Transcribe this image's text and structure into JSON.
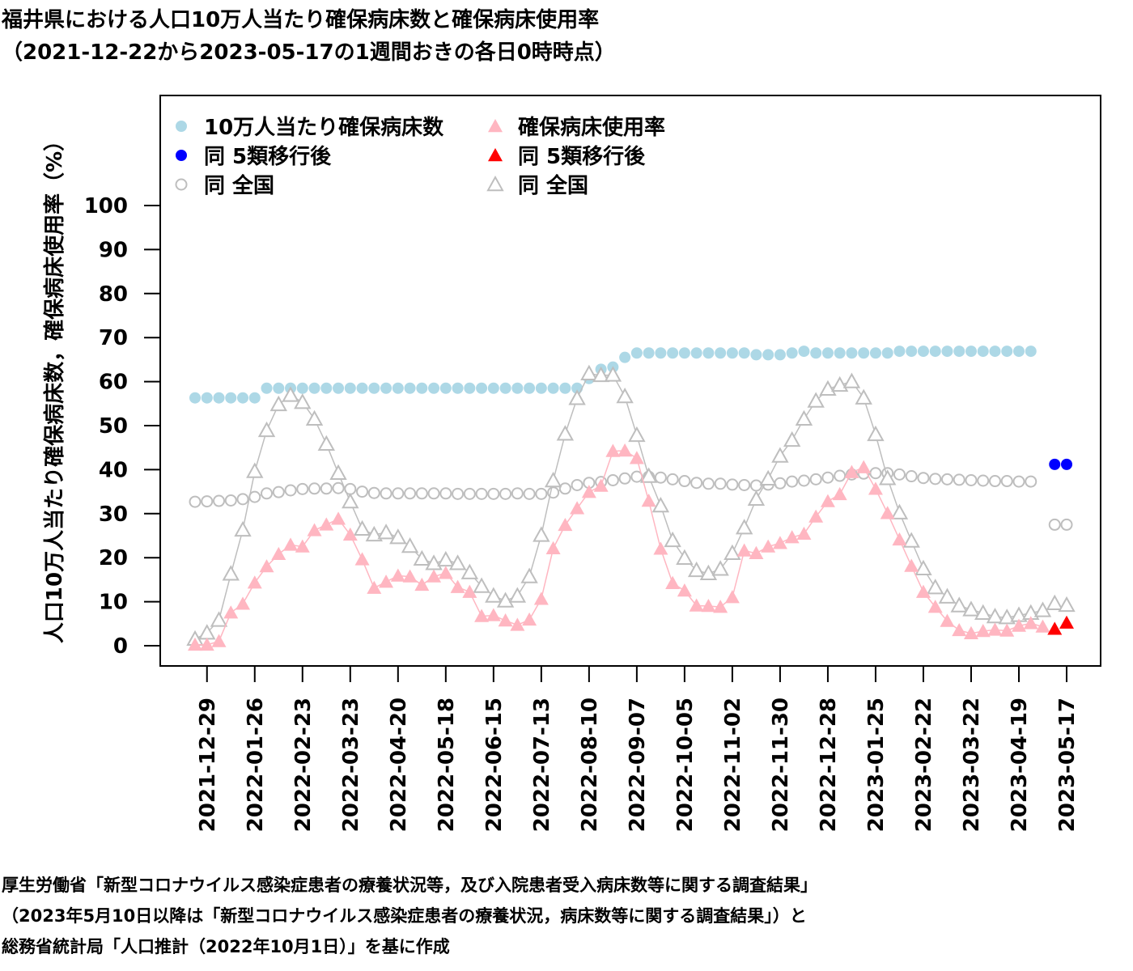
{
  "title_line1": "福井県における人口10万人当たり確保病床数と確保病床使用率",
  "title_line2": "（2021-12-22から2023-05-17の1週間おきの各日0時時点）",
  "source_line1": "厚生労働省「新型コロナウイルス感染症患者の療養状況等，及び入院患者受入病床数等に関する調査結果」",
  "source_line2": "（2023年5月10日以降は「新型コロナウイルス感染症患者の療養状況，病床数等に関する調査結果」）と",
  "source_line3": "総務省統計局「人口推計（2022年10月1日）」を基に作成",
  "colors": {
    "beds": "#add8e6",
    "beds_post": "#0000ff",
    "usage": "#ffb6c1",
    "usage_post": "#ff0000",
    "national": "#bebebe"
  },
  "chart_data": {
    "type": "scatter",
    "ylabel": "人口10万人当たり確保病床数，確保病床使用率（%）",
    "ylim": [
      0,
      100
    ],
    "yticks": [
      0,
      10,
      20,
      30,
      40,
      50,
      60,
      70,
      80,
      90,
      100
    ],
    "x_start": "2021-12-22",
    "x_end": "2023-05-17",
    "xtick_labels": [
      "2021-12-29",
      "2022-01-26",
      "2022-02-23",
      "2022-03-23",
      "2022-04-20",
      "2022-05-18",
      "2022-06-15",
      "2022-07-13",
      "2022-08-10",
      "2022-09-07",
      "2022-10-05",
      "2022-11-02",
      "2022-11-30",
      "2022-12-28",
      "2023-01-25",
      "2023-02-22",
      "2023-03-22",
      "2023-04-19",
      "2023-05-17"
    ],
    "legend": [
      "10万人当たり確保病床数",
      "同 5類移行後",
      "同 全国",
      "確保病床使用率",
      "同 5類移行後",
      "同 全国"
    ],
    "legend_position": "top-left",
    "grid": false,
    "series": [
      {
        "name": "10万人当たり確保病床数",
        "marker": "circle",
        "line": false,
        "values": [
          56.3,
          56.3,
          56.3,
          56.3,
          56.3,
          56.3,
          58.5,
          58.5,
          58.5,
          58.5,
          58.5,
          58.5,
          58.5,
          58.5,
          58.5,
          58.5,
          58.5,
          58.5,
          58.5,
          58.5,
          58.5,
          58.5,
          58.5,
          58.5,
          58.5,
          58.5,
          58.5,
          58.5,
          58.5,
          58.5,
          58.5,
          58.5,
          58.5,
          60.7,
          62.8,
          63.3,
          65.5,
          66.5,
          66.5,
          66.5,
          66.5,
          66.5,
          66.5,
          66.5,
          66.5,
          66.5,
          66.5,
          66.1,
          66.1,
          66.1,
          66.5,
          66.9,
          66.5,
          66.5,
          66.5,
          66.5,
          66.5,
          66.5,
          66.5,
          66.9,
          66.9,
          66.9,
          66.9,
          66.9,
          66.9,
          66.9,
          66.9,
          66.9,
          66.9,
          66.9,
          66.9
        ]
      },
      {
        "name": "同 5類移行後",
        "marker": "circle",
        "line": false,
        "x": [
          "2023-05-10",
          "2023-05-17"
        ],
        "values": [
          41.2,
          41.2
        ]
      },
      {
        "name": "同 全国",
        "marker": "circle-open",
        "line": true,
        "values": [
          32.7,
          32.8,
          32.9,
          33.0,
          33.3,
          33.8,
          34.6,
          34.9,
          35.3,
          35.6,
          35.7,
          35.7,
          35.8,
          35.6,
          35.0,
          34.7,
          34.6,
          34.6,
          34.6,
          34.6,
          34.6,
          34.6,
          34.5,
          34.5,
          34.5,
          34.5,
          34.5,
          34.6,
          34.5,
          34.5,
          34.8,
          35.7,
          36.5,
          37.0,
          37.2,
          37.6,
          38.0,
          38.4,
          38.4,
          38.2,
          37.8,
          37.4,
          37.0,
          36.8,
          36.8,
          36.6,
          36.5,
          36.4,
          36.6,
          36.9,
          37.3,
          37.5,
          37.8,
          38.2,
          38.6,
          38.9,
          39.1,
          39.2,
          39.2,
          38.9,
          38.5,
          38.1,
          37.9,
          37.8,
          37.7,
          37.6,
          37.5,
          37.4,
          37.4,
          37.3,
          37.3
        ]
      },
      {
        "name": "同 全国",
        "marker": "circle-open",
        "line": false,
        "x": [
          "2023-05-10",
          "2023-05-17"
        ],
        "values": [
          27.5,
          27.5
        ]
      },
      {
        "name": "確保病床使用率",
        "marker": "triangle",
        "line": true,
        "values": [
          0.2,
          0.2,
          1.0,
          7.5,
          9.5,
          14.3,
          18.0,
          20.8,
          22.9,
          22.5,
          26.2,
          27.5,
          28.8,
          25.2,
          19.6,
          13.1,
          14.5,
          15.9,
          15.7,
          13.8,
          15.7,
          16.5,
          13.3,
          12.2,
          6.7,
          6.9,
          5.7,
          4.7,
          5.9,
          10.6,
          22.1,
          27.4,
          31.2,
          34.9,
          36.3,
          44.2,
          44.3,
          42.6,
          32.9,
          22.0,
          14.2,
          12.5,
          9.1,
          9.0,
          8.8,
          11.0,
          21.6,
          21.0,
          22.5,
          23.3,
          24.6,
          25.4,
          29.3,
          32.8,
          34.4,
          39.4,
          40.5,
          35.6,
          30.1,
          24.1,
          18.1,
          12.2,
          8.8,
          5.6,
          3.5,
          2.8,
          3.3,
          3.6,
          3.4,
          4.5,
          5.1,
          4.3
        ]
      },
      {
        "name": "同 5類移行後",
        "marker": "triangle",
        "line": false,
        "x": [
          "2023-05-10",
          "2023-05-17"
        ],
        "values": [
          3.8,
          5.2
        ]
      },
      {
        "name": "同 全国",
        "marker": "triangle-open",
        "line": true,
        "values": [
          1.5,
          2.9,
          5.8,
          16.3,
          26.3,
          39.6,
          48.9,
          54.8,
          56.9,
          55.3,
          51.5,
          45.8,
          39.2,
          32.7,
          26.5,
          25.2,
          25.7,
          24.6,
          22.6,
          19.7,
          18.7,
          19.5,
          18.7,
          16.6,
          13.5,
          11.3,
          10.2,
          11.3,
          15.7,
          25.1,
          37.5,
          48.1,
          56.2,
          61.8,
          61.4,
          61.5,
          56.6,
          47.8,
          38.5,
          31.8,
          23.9,
          19.9,
          17.1,
          16.4,
          17.4,
          21.0,
          26.8,
          33.3,
          37.9,
          43.1,
          46.7,
          51.5,
          55.6,
          58.3,
          59.2,
          60.0,
          56.3,
          48.0,
          38.0,
          30.2,
          23.8,
          17.5,
          13.2,
          11.1,
          9.1,
          8.2,
          7.4,
          6.6,
          6.4,
          6.9,
          7.4,
          8.0
        ]
      },
      {
        "name": "同 全国",
        "marker": "triangle-open",
        "line": false,
        "x": [
          "2023-05-10",
          "2023-05-17"
        ],
        "values": [
          9.6,
          9.2
        ]
      }
    ]
  }
}
